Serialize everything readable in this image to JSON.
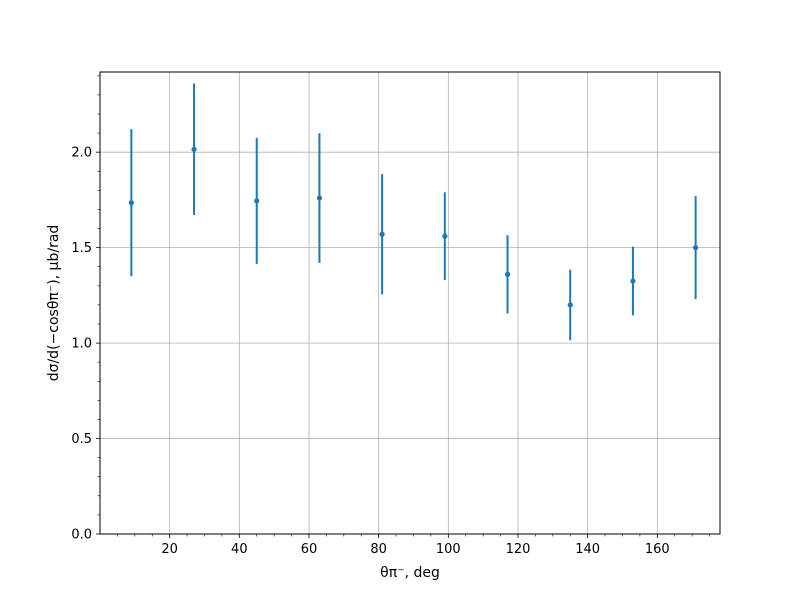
{
  "chart_data": {
    "type": "scatter",
    "xlabel": "θπ⁻, deg",
    "ylabel": "dσ/d(−cosθπ⁻), μb/rad",
    "xlim": [
      0,
      178
    ],
    "ylim": [
      0,
      2.42
    ],
    "x_ticks": [
      20,
      40,
      60,
      80,
      100,
      120,
      140,
      160
    ],
    "y_ticks": [
      0.0,
      0.5,
      1.0,
      1.5,
      2.0
    ],
    "x_tick_labels": [
      "20",
      "40",
      "60",
      "80",
      "100",
      "120",
      "140",
      "160"
    ],
    "y_tick_labels": [
      "0.0",
      "0.5",
      "1.0",
      "1.5",
      "2.0"
    ],
    "grid": true,
    "color": "#1f77b4",
    "series": [
      {
        "x": [
          9,
          27,
          45,
          63,
          81,
          99,
          117,
          135,
          153,
          171
        ],
        "y": [
          1.735,
          2.015,
          1.745,
          1.76,
          1.57,
          1.56,
          1.36,
          1.2,
          1.325,
          1.5
        ],
        "yerr": [
          0.385,
          0.345,
          0.33,
          0.34,
          0.315,
          0.23,
          0.205,
          0.185,
          0.18,
          0.27
        ]
      }
    ]
  }
}
